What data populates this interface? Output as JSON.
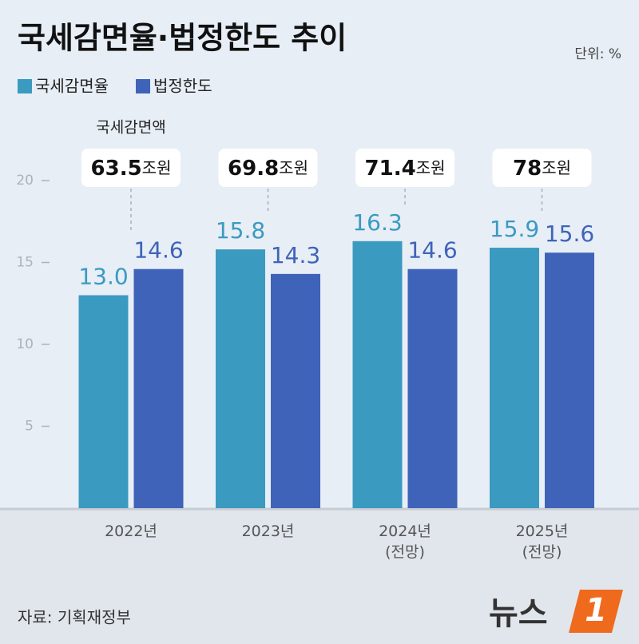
{
  "chart_data": {
    "type": "bar",
    "title": "국세감면율·법정한도 추이",
    "unit_note": "단위: %",
    "categories": [
      "2022년",
      "2023년",
      "2024년\n(전망)",
      "2025년\n(전망)"
    ],
    "series": [
      {
        "name": "국세감면율",
        "color": "#3b9ac0",
        "values": [
          13.0,
          15.8,
          16.3,
          15.9
        ],
        "value_labels": [
          "13.0",
          "15.8",
          "16.3",
          "15.9"
        ]
      },
      {
        "name": "법정한도",
        "color": "#3f63b9",
        "values": [
          14.6,
          14.3,
          14.6,
          15.6
        ]
      }
    ],
    "ylim": [
      0,
      20
    ],
    "yticks": [
      5,
      10,
      15,
      20
    ],
    "annotation": {
      "label": "국세감면액",
      "unit": "조원",
      "values": [
        63.5,
        69.8,
        71.4,
        78
      ]
    },
    "source": "자료: 기획재정부",
    "logo": {
      "text": "뉴스",
      "mark": "1"
    }
  }
}
